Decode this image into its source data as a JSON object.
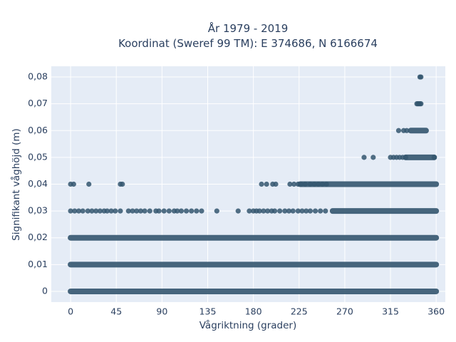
{
  "chart_data": {
    "type": "scatter",
    "title_line1": "År 1979 - 2019",
    "title_line2": "Koordinat (Sweref 99 TM): E 374686, N 6166674",
    "xlabel": "Vågriktning (grader)",
    "ylabel": "Signifikant våghöjd (m)",
    "xlim": [
      -19,
      369
    ],
    "ylim": [
      -0.004,
      0.084
    ],
    "xticks": [
      0,
      45,
      90,
      135,
      180,
      225,
      270,
      315,
      360
    ],
    "yticks": [
      0,
      0.01,
      0.02,
      0.03,
      0.04,
      0.05,
      0.06,
      0.07,
      0.08
    ],
    "ytick_labels": [
      "0",
      "0,01",
      "0,02",
      "0,03",
      "0,04",
      "0,05",
      "0,06",
      "0,07",
      "0,08"
    ],
    "grid": true,
    "marker_color": "#34566f",
    "background_color": "#e5ecf6",
    "series": [
      {
        "points_dense": [
          {
            "y": 0.0,
            "ranges": [
              [
                0,
                360
              ]
            ]
          },
          {
            "y": 0.01,
            "ranges": [
              [
                0,
                360
              ]
            ]
          },
          {
            "y": 0.02,
            "ranges": [
              [
                0,
                360
              ]
            ]
          },
          {
            "y": 0.03,
            "ranges": [
              [
                258,
                360
              ]
            ]
          },
          {
            "y": 0.04,
            "ranges": [
              [
                226,
                360
              ]
            ]
          },
          {
            "y": 0.05,
            "ranges": [
              [
                330,
                358
              ]
            ]
          },
          {
            "y": 0.06,
            "ranges": [
              [
                335,
                350
              ]
            ]
          }
        ],
        "points": [
          [
            0,
            0.04
          ],
          [
            3,
            0.04
          ],
          [
            18,
            0.04
          ],
          [
            49,
            0.04
          ],
          [
            51,
            0.04
          ],
          [
            188,
            0.04
          ],
          [
            193,
            0.04
          ],
          [
            199,
            0.04
          ],
          [
            202,
            0.04
          ],
          [
            216,
            0.04
          ],
          [
            220,
            0.04
          ],
          [
            224,
            0.04
          ],
          [
            0,
            0.03
          ],
          [
            4,
            0.03
          ],
          [
            8,
            0.03
          ],
          [
            12,
            0.03
          ],
          [
            17,
            0.03
          ],
          [
            21,
            0.03
          ],
          [
            25,
            0.03
          ],
          [
            29,
            0.03
          ],
          [
            33,
            0.03
          ],
          [
            36,
            0.03
          ],
          [
            40,
            0.03
          ],
          [
            44,
            0.03
          ],
          [
            49,
            0.03
          ],
          [
            57,
            0.03
          ],
          [
            61,
            0.03
          ],
          [
            65,
            0.03
          ],
          [
            69,
            0.03
          ],
          [
            73,
            0.03
          ],
          [
            78,
            0.03
          ],
          [
            84,
            0.03
          ],
          [
            87,
            0.03
          ],
          [
            92,
            0.03
          ],
          [
            97,
            0.03
          ],
          [
            102,
            0.03
          ],
          [
            105,
            0.03
          ],
          [
            109,
            0.03
          ],
          [
            114,
            0.03
          ],
          [
            119,
            0.03
          ],
          [
            124,
            0.03
          ],
          [
            129,
            0.03
          ],
          [
            144,
            0.03
          ],
          [
            165,
            0.03
          ],
          [
            176,
            0.03
          ],
          [
            180,
            0.03
          ],
          [
            183,
            0.03
          ],
          [
            186,
            0.03
          ],
          [
            190,
            0.03
          ],
          [
            194,
            0.03
          ],
          [
            198,
            0.03
          ],
          [
            201,
            0.03
          ],
          [
            206,
            0.03
          ],
          [
            211,
            0.03
          ],
          [
            215,
            0.03
          ],
          [
            219,
            0.03
          ],
          [
            224,
            0.03
          ],
          [
            228,
            0.03
          ],
          [
            232,
            0.03
          ],
          [
            236,
            0.03
          ],
          [
            241,
            0.03
          ],
          [
            246,
            0.03
          ],
          [
            251,
            0.03
          ],
          [
            227,
            0.04
          ],
          [
            231,
            0.04
          ],
          [
            236,
            0.04
          ],
          [
            240,
            0.04
          ],
          [
            244,
            0.04
          ],
          [
            248,
            0.04
          ],
          [
            252,
            0.04
          ],
          [
            289,
            0.05
          ],
          [
            298,
            0.05
          ],
          [
            315,
            0.05
          ],
          [
            318,
            0.05
          ],
          [
            321,
            0.05
          ],
          [
            324,
            0.05
          ],
          [
            327,
            0.05
          ],
          [
            330,
            0.05
          ],
          [
            358,
            0.05
          ],
          [
            323,
            0.06
          ],
          [
            328,
            0.06
          ],
          [
            331,
            0.06
          ],
          [
            341,
            0.07
          ],
          [
            342,
            0.07
          ],
          [
            343,
            0.07
          ],
          [
            344,
            0.07
          ],
          [
            345,
            0.07
          ],
          [
            344,
            0.08
          ],
          [
            345,
            0.08
          ]
        ]
      }
    ]
  }
}
